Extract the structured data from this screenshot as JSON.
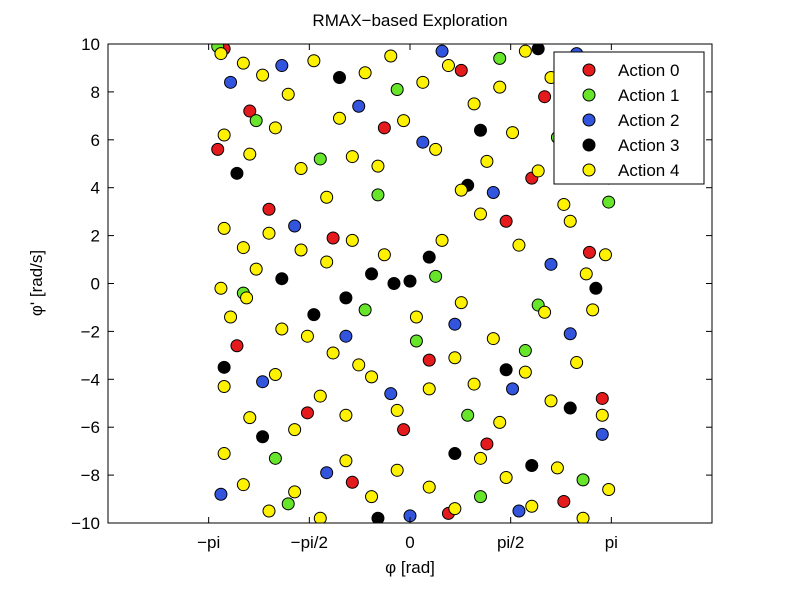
{
  "chart_data": {
    "type": "scatter",
    "title": "RMAX−based Exploration",
    "xlabel": "φ [rad]",
    "ylabel": "φ' [rad/s]",
    "xlim": [
      -4.712,
      4.712
    ],
    "ylim": [
      -10,
      10
    ],
    "x_ticks": [
      {
        "value": -3.1416,
        "label": "−pi"
      },
      {
        "value": -1.5708,
        "label": "−pi/2"
      },
      {
        "value": 0,
        "label": "0"
      },
      {
        "value": 1.5708,
        "label": "pi/2"
      },
      {
        "value": 3.1416,
        "label": "pi"
      }
    ],
    "y_ticks": [
      {
        "value": 10,
        "label": "10"
      },
      {
        "value": 8,
        "label": "8"
      },
      {
        "value": 6,
        "label": "6"
      },
      {
        "value": 4,
        "label": "4"
      },
      {
        "value": 2,
        "label": "2"
      },
      {
        "value": 0,
        "label": "0"
      },
      {
        "value": -2,
        "label": "−2"
      },
      {
        "value": -4,
        "label": "−4"
      },
      {
        "value": -6,
        "label": "−6"
      },
      {
        "value": -8,
        "label": "−8"
      },
      {
        "value": -10,
        "label": "−10"
      }
    ],
    "grid": false,
    "legend_position": "top-right",
    "marker": "circle",
    "marker_edge_color": "#000000",
    "series": [
      {
        "name": "Action 0",
        "color": "#e41a1c",
        "points": [
          [
            -2.9,
            9.8
          ],
          [
            -2.5,
            7.2
          ],
          [
            -2.2,
            3.1
          ],
          [
            -1.6,
            -5.4
          ],
          [
            -0.9,
            -8.3
          ],
          [
            -0.4,
            6.5
          ],
          [
            0.3,
            -3.2
          ],
          [
            0.8,
            8.9
          ],
          [
            1.2,
            -6.7
          ],
          [
            1.9,
            4.4
          ],
          [
            2.4,
            -9.1
          ],
          [
            2.8,
            1.3
          ],
          [
            3.0,
            -4.8
          ],
          [
            -2.7,
            -2.6
          ],
          [
            -1.2,
            1.9
          ],
          [
            0.6,
            -9.6
          ],
          [
            2.1,
            7.8
          ],
          [
            -3.0,
            5.6
          ],
          [
            -0.1,
            -6.1
          ],
          [
            1.5,
            2.6
          ]
        ]
      },
      {
        "name": "Action 1",
        "color": "#66e52a",
        "points": [
          [
            -3.0,
            9.9
          ],
          [
            -2.6,
            -0.4
          ],
          [
            -2.1,
            -7.3
          ],
          [
            -1.4,
            5.2
          ],
          [
            -0.7,
            -1.1
          ],
          [
            -0.2,
            8.1
          ],
          [
            0.4,
            0.3
          ],
          [
            0.9,
            -5.5
          ],
          [
            1.4,
            9.4
          ],
          [
            1.8,
            -2.8
          ],
          [
            2.3,
            6.1
          ],
          [
            2.7,
            -8.2
          ],
          [
            3.1,
            3.4
          ],
          [
            -1.9,
            -9.2
          ],
          [
            -0.5,
            3.7
          ],
          [
            1.1,
            -8.9
          ],
          [
            2.0,
            -0.9
          ],
          [
            -2.4,
            6.8
          ],
          [
            0.1,
            -2.4
          ],
          [
            2.9,
            8.8
          ]
        ]
      },
      {
        "name": "Action 2",
        "color": "#3355dd",
        "points": [
          [
            -2.8,
            8.4
          ],
          [
            -2.3,
            -4.1
          ],
          [
            -1.8,
            2.4
          ],
          [
            -1.3,
            -7.9
          ],
          [
            -0.8,
            7.4
          ],
          [
            -0.3,
            -4.6
          ],
          [
            0.2,
            5.9
          ],
          [
            0.7,
            -1.7
          ],
          [
            1.3,
            3.8
          ],
          [
            1.7,
            -9.5
          ],
          [
            2.2,
            0.8
          ],
          [
            2.6,
            9.6
          ],
          [
            3.0,
            -6.3
          ],
          [
            -2.95,
            -8.8
          ],
          [
            -1.0,
            -2.2
          ],
          [
            0.5,
            9.7
          ],
          [
            1.6,
            -4.4
          ],
          [
            2.5,
            -2.1
          ],
          [
            -2.0,
            9.1
          ],
          [
            0.0,
            -9.7
          ]
        ]
      },
      {
        "name": "Action 3",
        "color": "#000000",
        "points": [
          [
            -2.7,
            4.6
          ],
          [
            -2.0,
            0.2
          ],
          [
            -1.5,
            -1.3
          ],
          [
            -1.0,
            -0.6
          ],
          [
            -0.6,
            0.4
          ],
          [
            -0.25,
            0.0
          ],
          [
            0.0,
            0.1
          ],
          [
            0.3,
            1.1
          ],
          [
            0.7,
            -7.1
          ],
          [
            1.1,
            6.4
          ],
          [
            1.5,
            -3.6
          ],
          [
            2.0,
            9.8
          ],
          [
            2.5,
            -5.2
          ],
          [
            2.9,
            -0.2
          ],
          [
            -2.3,
            -6.4
          ],
          [
            -1.1,
            8.6
          ],
          [
            0.9,
            4.1
          ],
          [
            1.9,
            -7.6
          ],
          [
            -0.5,
            -9.8
          ],
          [
            -2.9,
            -3.5
          ]
        ]
      },
      {
        "name": "Action 4",
        "color": "#fff200",
        "points": [
          [
            -2.95,
            9.6
          ],
          [
            -2.6,
            9.2
          ],
          [
            -2.3,
            8.7
          ],
          [
            -1.9,
            7.9
          ],
          [
            -1.5,
            9.3
          ],
          [
            -1.1,
            6.9
          ],
          [
            -0.7,
            8.8
          ],
          [
            -0.3,
            9.5
          ],
          [
            0.2,
            8.4
          ],
          [
            0.6,
            9.1
          ],
          [
            1.0,
            7.5
          ],
          [
            1.4,
            8.2
          ],
          [
            1.8,
            9.7
          ],
          [
            2.2,
            8.6
          ],
          [
            2.6,
            7.1
          ],
          [
            3.0,
            9.3
          ],
          [
            -2.9,
            6.2
          ],
          [
            -2.5,
            5.4
          ],
          [
            -2.1,
            6.5
          ],
          [
            -1.7,
            4.8
          ],
          [
            -1.3,
            3.6
          ],
          [
            -0.9,
            5.3
          ],
          [
            -0.5,
            4.9
          ],
          [
            -0.1,
            6.8
          ],
          [
            0.4,
            5.6
          ],
          [
            0.8,
            3.9
          ],
          [
            1.2,
            5.1
          ],
          [
            1.6,
            6.3
          ],
          [
            2.0,
            4.7
          ],
          [
            2.4,
            3.3
          ],
          [
            2.8,
            5.8
          ],
          [
            3.1,
            4.4
          ],
          [
            -2.9,
            2.3
          ],
          [
            -2.6,
            1.5
          ],
          [
            -2.4,
            0.6
          ],
          [
            -2.55,
            -0.6
          ],
          [
            -2.8,
            -1.4
          ],
          [
            -2.95,
            -0.2
          ],
          [
            -2.2,
            2.1
          ],
          [
            -2.0,
            -1.9
          ],
          [
            -1.7,
            1.4
          ],
          [
            -1.6,
            -2.2
          ],
          [
            -1.3,
            0.9
          ],
          [
            -1.2,
            -2.9
          ],
          [
            -0.9,
            1.8
          ],
          [
            -0.8,
            -3.4
          ],
          [
            -0.4,
            1.2
          ],
          [
            0.1,
            -1.4
          ],
          [
            0.5,
            1.8
          ],
          [
            0.8,
            -0.8
          ],
          [
            1.1,
            2.9
          ],
          [
            1.3,
            -2.3
          ],
          [
            1.7,
            1.6
          ],
          [
            2.1,
            -1.2
          ],
          [
            2.5,
            2.6
          ],
          [
            2.75,
            0.4
          ],
          [
            2.85,
            -1.1
          ],
          [
            3.05,
            1.2
          ],
          [
            -2.9,
            -4.3
          ],
          [
            -2.5,
            -5.6
          ],
          [
            -2.1,
            -3.8
          ],
          [
            -1.8,
            -6.1
          ],
          [
            -1.4,
            -4.7
          ],
          [
            -1.0,
            -5.5
          ],
          [
            -0.6,
            -3.9
          ],
          [
            -0.2,
            -5.3
          ],
          [
            0.3,
            -4.4
          ],
          [
            0.7,
            -3.1
          ],
          [
            1.0,
            -4.2
          ],
          [
            1.4,
            -5.8
          ],
          [
            1.8,
            -3.7
          ],
          [
            2.2,
            -4.9
          ],
          [
            2.6,
            -3.3
          ],
          [
            3.0,
            -5.5
          ],
          [
            -2.9,
            -7.1
          ],
          [
            -2.6,
            -8.4
          ],
          [
            -2.2,
            -9.5
          ],
          [
            -1.8,
            -8.7
          ],
          [
            -1.4,
            -9.8
          ],
          [
            -1.0,
            -7.4
          ],
          [
            -0.6,
            -8.9
          ],
          [
            -0.2,
            -7.8
          ],
          [
            0.3,
            -8.5
          ],
          [
            0.7,
            -9.4
          ],
          [
            1.1,
            -7.3
          ],
          [
            1.5,
            -8.1
          ],
          [
            1.9,
            -9.3
          ],
          [
            2.3,
            -7.7
          ],
          [
            2.7,
            -9.8
          ],
          [
            3.1,
            -8.6
          ]
        ]
      }
    ]
  }
}
